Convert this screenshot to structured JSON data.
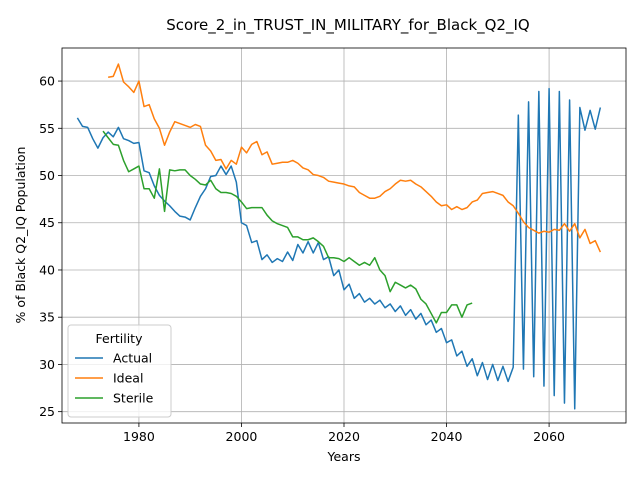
{
  "chart_data": {
    "type": "line",
    "title": "Score_2_in_TRUST_IN_MILITARY_for_Black_Q2_IQ",
    "xlabel": "Years",
    "ylabel": "% of Black Q2_IQ Population",
    "xlim": [
      1965,
      2075
    ],
    "ylim": [
      23.8,
      63.5
    ],
    "xticks": [
      1980,
      2000,
      2020,
      2040,
      2060
    ],
    "yticks": [
      25,
      30,
      35,
      40,
      45,
      50,
      55,
      60
    ],
    "grid": true,
    "legend": {
      "title": "Fertility",
      "placement": "lower-left"
    },
    "series": [
      {
        "name": "Actual",
        "color": "#1f77b4",
        "x": [
          1968,
          1969,
          1970,
          1971,
          1972,
          1973,
          1974,
          1975,
          1976,
          1977,
          1978,
          1979,
          1980,
          1981,
          1982,
          1983,
          1984,
          1985,
          1986,
          1987,
          1988,
          1989,
          1990,
          1991,
          1992,
          1993,
          1994,
          1995,
          1996,
          1997,
          1998,
          1999,
          2000,
          2001,
          2002,
          2003,
          2004,
          2005,
          2006,
          2007,
          2008,
          2009,
          2010,
          2011,
          2012,
          2013,
          2014,
          2015,
          2016,
          2017,
          2018,
          2019,
          2020,
          2021,
          2022,
          2023,
          2024,
          2025,
          2026,
          2027,
          2028,
          2029,
          2030,
          2031,
          2032,
          2033,
          2034,
          2035,
          2036,
          2037,
          2038,
          2039,
          2040,
          2041,
          2042,
          2043,
          2044,
          2045,
          2046,
          2047,
          2048,
          2049,
          2050,
          2051,
          2052,
          2053,
          2054,
          2055,
          2056,
          2057,
          2058,
          2059,
          2060,
          2061,
          2062,
          2063,
          2064,
          2065,
          2066,
          2067,
          2068,
          2069,
          2070
        ],
        "y": [
          56.1,
          55.2,
          55.1,
          53.9,
          52.9,
          54.0,
          54.6,
          54.1,
          55.1,
          53.9,
          53.7,
          53.4,
          53.5,
          50.5,
          50.3,
          48.9,
          47.9,
          47.3,
          46.8,
          46.2,
          45.7,
          45.6,
          45.3,
          46.6,
          47.8,
          48.6,
          49.9,
          50.0,
          51.0,
          50.1,
          51.0,
          49.3,
          45.0,
          44.7,
          42.9,
          43.1,
          41.1,
          41.6,
          40.8,
          41.2,
          40.9,
          41.9,
          41.0,
          42.7,
          41.8,
          43.0,
          41.8,
          42.9,
          41.1,
          41.4,
          39.4,
          40.0,
          37.9,
          38.5,
          37.0,
          37.5,
          36.6,
          37.0,
          36.4,
          36.8,
          36.0,
          36.4,
          35.6,
          36.2,
          35.2,
          35.8,
          34.8,
          35.4,
          34.2,
          34.7,
          33.4,
          33.8,
          32.3,
          32.6,
          30.9,
          31.4,
          29.8,
          30.6,
          28.8,
          30.2,
          28.4,
          30.0,
          28.3,
          29.8,
          28.2,
          29.7,
          56.4,
          29.5,
          57.8,
          28.7,
          58.9,
          27.7,
          59.2,
          26.7,
          58.9,
          25.9,
          58.0,
          25.3,
          57.2,
          54.8,
          56.9,
          54.9,
          57.2
        ]
      },
      {
        "name": "Ideal",
        "color": "#ff7f0e",
        "x": [
          1974,
          1975,
          1976,
          1977,
          1978,
          1979,
          1980,
          1981,
          1982,
          1983,
          1984,
          1985,
          1986,
          1987,
          1988,
          1989,
          1990,
          1991,
          1992,
          1993,
          1994,
          1995,
          1996,
          1997,
          1998,
          1999,
          2000,
          2001,
          2002,
          2003,
          2004,
          2005,
          2006,
          2007,
          2008,
          2009,
          2010,
          2011,
          2012,
          2013,
          2014,
          2015,
          2016,
          2017,
          2018,
          2019,
          2020,
          2021,
          2022,
          2023,
          2024,
          2025,
          2026,
          2027,
          2028,
          2029,
          2030,
          2031,
          2032,
          2033,
          2034,
          2035,
          2036,
          2037,
          2038,
          2039,
          2040,
          2041,
          2042,
          2043,
          2044,
          2045,
          2046,
          2047,
          2048,
          2049,
          2050,
          2051,
          2052,
          2053,
          2054,
          2055,
          2056,
          2057,
          2058,
          2059,
          2060,
          2061,
          2062,
          2063,
          2064,
          2065,
          2066,
          2067,
          2068,
          2069,
          2070
        ],
        "y": [
          60.4,
          60.5,
          61.8,
          59.9,
          59.4,
          58.8,
          60.0,
          57.3,
          57.5,
          56.0,
          55.0,
          53.2,
          54.6,
          55.7,
          55.5,
          55.3,
          55.1,
          55.4,
          55.2,
          53.2,
          52.6,
          51.6,
          51.7,
          50.7,
          51.6,
          51.2,
          53.0,
          52.4,
          53.3,
          53.6,
          52.2,
          52.5,
          51.2,
          51.3,
          51.4,
          51.4,
          51.6,
          51.3,
          50.8,
          50.6,
          50.1,
          50.0,
          49.8,
          49.4,
          49.3,
          49.2,
          49.1,
          48.9,
          48.8,
          48.2,
          47.9,
          47.6,
          47.6,
          47.8,
          48.3,
          48.6,
          49.1,
          49.5,
          49.4,
          49.5,
          49.1,
          48.8,
          48.3,
          47.8,
          47.2,
          46.8,
          46.9,
          46.4,
          46.7,
          46.4,
          46.6,
          47.2,
          47.4,
          48.1,
          48.2,
          48.3,
          48.1,
          47.9,
          47.2,
          46.8,
          46.0,
          45.1,
          44.5,
          44.2,
          43.9,
          44.1,
          44.0,
          44.3,
          44.2,
          44.9,
          44.1,
          44.9,
          43.4,
          44.3,
          42.8,
          43.1,
          41.9
        ]
      },
      {
        "name": "Sterile",
        "color": "#2ca02c",
        "x": [
          1973,
          1974,
          1975,
          1976,
          1977,
          1978,
          1979,
          1980,
          1981,
          1982,
          1983,
          1984,
          1985,
          1986,
          1987,
          1988,
          1989,
          1990,
          1991,
          1992,
          1993,
          1994,
          1995,
          1996,
          1997,
          1998,
          1999,
          2000,
          2001,
          2002,
          2003,
          2004,
          2005,
          2006,
          2007,
          2008,
          2009,
          2010,
          2011,
          2012,
          2013,
          2014,
          2015,
          2016,
          2017,
          2018,
          2019,
          2020,
          2021,
          2022,
          2023,
          2024,
          2025,
          2026,
          2027,
          2028,
          2029,
          2030,
          2031,
          2032,
          2033,
          2034,
          2035,
          2036,
          2037,
          2038,
          2039,
          2040,
          2041,
          2042,
          2043,
          2044,
          2045
        ],
        "y": [
          54.7,
          54.0,
          53.3,
          53.2,
          51.6,
          50.4,
          50.7,
          51.0,
          48.6,
          48.6,
          47.6,
          50.7,
          46.2,
          50.6,
          50.5,
          50.6,
          50.6,
          50.0,
          49.6,
          49.1,
          49.0,
          49.5,
          48.6,
          48.2,
          48.2,
          48.1,
          47.8,
          47.2,
          46.5,
          46.6,
          46.6,
          46.6,
          45.8,
          45.2,
          44.9,
          44.7,
          44.5,
          43.5,
          43.5,
          43.2,
          43.2,
          43.4,
          43.0,
          42.5,
          41.3,
          41.3,
          41.2,
          40.9,
          41.3,
          40.9,
          40.5,
          40.8,
          40.5,
          41.3,
          40.0,
          39.4,
          37.7,
          38.7,
          38.4,
          38.1,
          38.4,
          38.0,
          36.9,
          36.4,
          35.4,
          34.4,
          35.5,
          35.5,
          36.3,
          36.3,
          35.0,
          36.3,
          36.5
        ]
      }
    ]
  }
}
